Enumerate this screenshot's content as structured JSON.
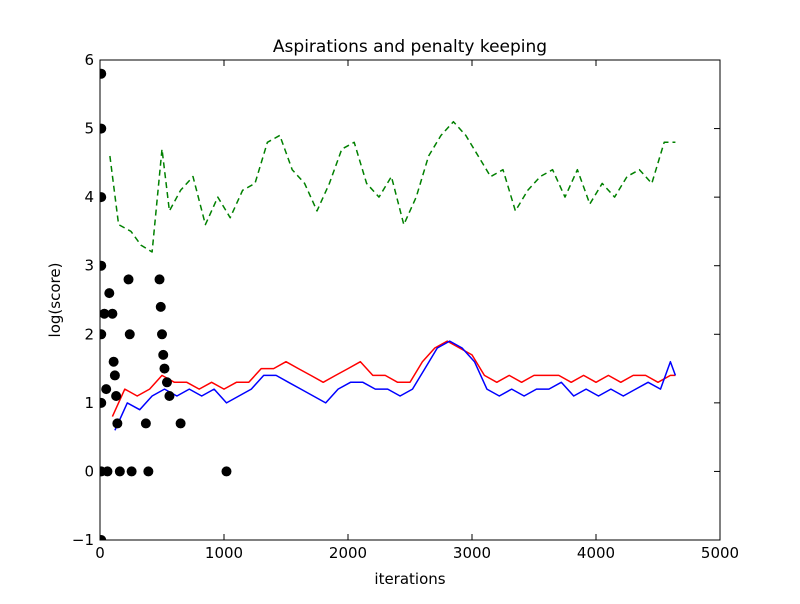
{
  "chart_data": {
    "type": "line",
    "title": "Aspirations and penalty keeping",
    "xlabel": "iterations",
    "ylabel": "log(score)",
    "xlim": [
      0,
      5000
    ],
    "ylim": [
      -1,
      6
    ],
    "x_ticks": [
      0,
      1000,
      2000,
      3000,
      4000,
      5000
    ],
    "y_ticks": [
      -1,
      0,
      1,
      2,
      3,
      4,
      5,
      6
    ],
    "grid": false,
    "legend": "none",
    "series": [
      {
        "color": "#008000",
        "style": "dashed",
        "points": [
          [
            80,
            4.6
          ],
          [
            150,
            3.6
          ],
          [
            250,
            3.5
          ],
          [
            330,
            3.3
          ],
          [
            420,
            3.2
          ],
          [
            500,
            4.7
          ],
          [
            560,
            3.8
          ],
          [
            650,
            4.1
          ],
          [
            750,
            4.3
          ],
          [
            850,
            3.6
          ],
          [
            950,
            4.0
          ],
          [
            1050,
            3.7
          ],
          [
            1150,
            4.1
          ],
          [
            1250,
            4.2
          ],
          [
            1350,
            4.8
          ],
          [
            1450,
            4.9
          ],
          [
            1550,
            4.4
          ],
          [
            1650,
            4.2
          ],
          [
            1750,
            3.8
          ],
          [
            1850,
            4.2
          ],
          [
            1950,
            4.7
          ],
          [
            2050,
            4.8
          ],
          [
            2150,
            4.2
          ],
          [
            2250,
            4.0
          ],
          [
            2350,
            4.3
          ],
          [
            2450,
            3.6
          ],
          [
            2550,
            4.0
          ],
          [
            2650,
            4.6
          ],
          [
            2750,
            4.9
          ],
          [
            2850,
            5.1
          ],
          [
            2950,
            4.9
          ],
          [
            3050,
            4.6
          ],
          [
            3150,
            4.3
          ],
          [
            3250,
            4.4
          ],
          [
            3350,
            3.8
          ],
          [
            3450,
            4.1
          ],
          [
            3550,
            4.3
          ],
          [
            3650,
            4.4
          ],
          [
            3750,
            4.0
          ],
          [
            3850,
            4.4
          ],
          [
            3950,
            3.9
          ],
          [
            4050,
            4.2
          ],
          [
            4150,
            4.0
          ],
          [
            4250,
            4.3
          ],
          [
            4350,
            4.4
          ],
          [
            4450,
            4.2
          ],
          [
            4550,
            4.8
          ],
          [
            4640,
            4.8
          ]
        ]
      },
      {
        "color": "#ff0000",
        "style": "solid",
        "points": [
          [
            100,
            0.8
          ],
          [
            200,
            1.2
          ],
          [
            300,
            1.1
          ],
          [
            400,
            1.2
          ],
          [
            500,
            1.4
          ],
          [
            600,
            1.3
          ],
          [
            700,
            1.3
          ],
          [
            800,
            1.2
          ],
          [
            900,
            1.3
          ],
          [
            1000,
            1.2
          ],
          [
            1100,
            1.3
          ],
          [
            1200,
            1.3
          ],
          [
            1300,
            1.5
          ],
          [
            1400,
            1.5
          ],
          [
            1500,
            1.6
          ],
          [
            1600,
            1.5
          ],
          [
            1700,
            1.4
          ],
          [
            1800,
            1.3
          ],
          [
            1900,
            1.4
          ],
          [
            2000,
            1.5
          ],
          [
            2100,
            1.6
          ],
          [
            2200,
            1.4
          ],
          [
            2300,
            1.4
          ],
          [
            2400,
            1.3
          ],
          [
            2500,
            1.3
          ],
          [
            2600,
            1.6
          ],
          [
            2700,
            1.8
          ],
          [
            2800,
            1.9
          ],
          [
            2900,
            1.8
          ],
          [
            3000,
            1.7
          ],
          [
            3100,
            1.4
          ],
          [
            3200,
            1.3
          ],
          [
            3300,
            1.4
          ],
          [
            3400,
            1.3
          ],
          [
            3500,
            1.4
          ],
          [
            3600,
            1.4
          ],
          [
            3700,
            1.4
          ],
          [
            3800,
            1.3
          ],
          [
            3900,
            1.4
          ],
          [
            4000,
            1.3
          ],
          [
            4100,
            1.4
          ],
          [
            4200,
            1.3
          ],
          [
            4300,
            1.4
          ],
          [
            4400,
            1.4
          ],
          [
            4500,
            1.3
          ],
          [
            4600,
            1.4
          ],
          [
            4640,
            1.4
          ]
        ]
      },
      {
        "color": "#0000ff",
        "style": "solid",
        "points": [
          [
            120,
            0.6
          ],
          [
            220,
            1.0
          ],
          [
            320,
            0.9
          ],
          [
            420,
            1.1
          ],
          [
            520,
            1.2
          ],
          [
            620,
            1.1
          ],
          [
            720,
            1.2
          ],
          [
            820,
            1.1
          ],
          [
            920,
            1.2
          ],
          [
            1020,
            1.0
          ],
          [
            1120,
            1.1
          ],
          [
            1220,
            1.2
          ],
          [
            1320,
            1.4
          ],
          [
            1420,
            1.4
          ],
          [
            1520,
            1.3
          ],
          [
            1620,
            1.2
          ],
          [
            1720,
            1.1
          ],
          [
            1820,
            1.0
          ],
          [
            1920,
            1.2
          ],
          [
            2020,
            1.3
          ],
          [
            2120,
            1.3
          ],
          [
            2220,
            1.2
          ],
          [
            2320,
            1.2
          ],
          [
            2420,
            1.1
          ],
          [
            2520,
            1.2
          ],
          [
            2620,
            1.5
          ],
          [
            2720,
            1.8
          ],
          [
            2820,
            1.9
          ],
          [
            2920,
            1.8
          ],
          [
            3020,
            1.6
          ],
          [
            3120,
            1.2
          ],
          [
            3220,
            1.1
          ],
          [
            3320,
            1.2
          ],
          [
            3420,
            1.1
          ],
          [
            3520,
            1.2
          ],
          [
            3620,
            1.2
          ],
          [
            3720,
            1.3
          ],
          [
            3820,
            1.1
          ],
          [
            3920,
            1.2
          ],
          [
            4020,
            1.1
          ],
          [
            4120,
            1.2
          ],
          [
            4220,
            1.1
          ],
          [
            4320,
            1.2
          ],
          [
            4420,
            1.3
          ],
          [
            4520,
            1.2
          ],
          [
            4600,
            1.6
          ],
          [
            4640,
            1.4
          ]
        ]
      },
      {
        "color": "#000000",
        "style": "markers",
        "points": [
          [
            10,
            5.8
          ],
          [
            10,
            5.0
          ],
          [
            10,
            4.0
          ],
          [
            10,
            3.0
          ],
          [
            10,
            2.0
          ],
          [
            10,
            1.0
          ],
          [
            10,
            0.0
          ],
          [
            10,
            -1.0
          ],
          [
            35,
            2.3
          ],
          [
            50,
            1.2
          ],
          [
            60,
            0.0
          ],
          [
            75,
            2.6
          ],
          [
            100,
            2.3
          ],
          [
            110,
            1.6
          ],
          [
            120,
            1.4
          ],
          [
            130,
            1.1
          ],
          [
            140,
            0.7
          ],
          [
            160,
            0.0
          ],
          [
            230,
            2.8
          ],
          [
            240,
            2.0
          ],
          [
            255,
            0.0
          ],
          [
            370,
            0.7
          ],
          [
            390,
            0.0
          ],
          [
            480,
            2.8
          ],
          [
            490,
            2.4
          ],
          [
            500,
            2.0
          ],
          [
            510,
            1.7
          ],
          [
            520,
            1.5
          ],
          [
            540,
            1.3
          ],
          [
            560,
            1.1
          ],
          [
            650,
            0.7
          ],
          [
            1020,
            0.0
          ]
        ]
      }
    ]
  }
}
